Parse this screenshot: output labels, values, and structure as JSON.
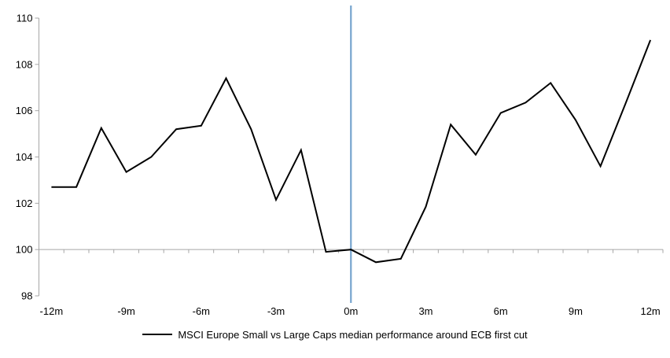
{
  "chart_data": {
    "type": "line",
    "title": "",
    "xlabel": "",
    "ylabel": "",
    "categories": [
      "-12m",
      "-11m",
      "-10m",
      "-9m",
      "-8m",
      "-7m",
      "-6m",
      "-5m",
      "-4m",
      "-3m",
      "-2m",
      "-1m",
      "0m",
      "1m",
      "2m",
      "3m",
      "4m",
      "5m",
      "6m",
      "7m",
      "8m",
      "9m",
      "10m",
      "11m",
      "12m"
    ],
    "series": [
      {
        "name": "MSCI Europe Small vs Large Caps median performance around ECB first cut",
        "color": "#000000",
        "values": [
          102.7,
          102.7,
          105.25,
          103.35,
          104.0,
          105.2,
          105.35,
          107.4,
          105.2,
          102.15,
          104.3,
          99.9,
          100.0,
          99.45,
          99.6,
          101.85,
          105.4,
          104.1,
          105.9,
          106.35,
          107.2,
          105.6,
          103.6,
          106.3,
          109.05
        ]
      }
    ],
    "ylim": [
      98,
      110
    ],
    "y_ticks": [
      98,
      100,
      102,
      104,
      106,
      108,
      110
    ],
    "x_tick_labels": [
      "-12m",
      "-9m",
      "-6m",
      "-3m",
      "0m",
      "3m",
      "6m",
      "9m",
      "12m"
    ],
    "x_label_step": 3,
    "axis_crosses_at": 100,
    "event_line": {
      "category": "0m",
      "color": "#79A6CF"
    },
    "axis_color": "#A6A6A6",
    "grid": false,
    "legend_position": "bottom"
  }
}
